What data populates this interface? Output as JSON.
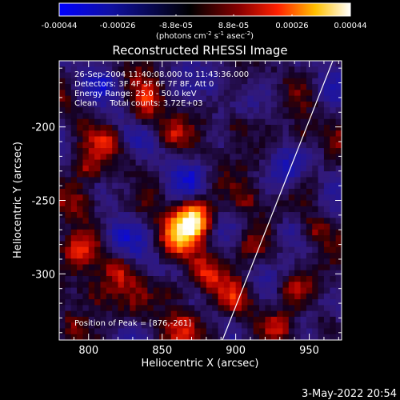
{
  "colorbar": {
    "tick_labels": [
      "-0.00044",
      "-0.00026",
      "-8.8e-05",
      "8.8e-05",
      "0.00026",
      "0.00044"
    ],
    "unit_main": "(photons cm",
    "unit_exp1": "-2",
    "unit_mid": " s",
    "unit_exp2": "-1",
    "unit_end": " asec",
    "unit_exp3": "-2",
    "unit_close": ")",
    "colors": [
      "#0000ff",
      "#000000",
      "#ff0000",
      "#ffff00",
      "#ffffff"
    ]
  },
  "plot": {
    "title": "Reconstructed RHESSI Image",
    "info_lines": [
      "26-Sep-2004 11:40:08.000 to 11:43:36.000",
      "Detectors: 3F 4F 5F 6F 7F 8F, Att 0",
      "Energy Range: 25.0 - 50.0 keV",
      "Clean     Total counts: 3.72E+03"
    ],
    "peak_label": "Position of Peak = [876,-261]",
    "timestamp": "3-May-2022 20:54"
  },
  "chart_data": {
    "type": "heatmap",
    "title": "Reconstructed RHESSI Image",
    "xlabel": "Heliocentric X (arcsec)",
    "ylabel": "Heliocentric Y (arcsec)",
    "xlim": [
      780,
      972
    ],
    "ylim": [
      -345,
      -155
    ],
    "x_ticks": [
      800,
      850,
      900,
      950
    ],
    "y_ticks": [
      -200,
      -250,
      -300
    ],
    "x_tick_labels": [
      "800",
      "850",
      "900",
      "950"
    ],
    "y_tick_labels": [
      "-200",
      "-250",
      "-300"
    ],
    "value_range": [
      -0.00044,
      0.00044
    ],
    "colorscale": "blue-black-red-yellow-white",
    "peak_position": [
      876,
      -261
    ],
    "limb_line": [
      [
        891,
        -345
      ],
      [
        966,
        -155
      ]
    ],
    "blobs": [
      {
        "x": 872,
        "y": -262,
        "sigma": 9,
        "amp": 1.0
      },
      {
        "x": 860,
        "y": -275,
        "sigma": 10,
        "amp": 0.55
      },
      {
        "x": 878,
        "y": -300,
        "sigma": 8,
        "amp": 0.5
      },
      {
        "x": 858,
        "y": -312,
        "sigma": 7,
        "amp": 0.55
      },
      {
        "x": 866,
        "y": -332,
        "sigma": 8,
        "amp": 0.45
      },
      {
        "x": 885,
        "y": -342,
        "sigma": 7,
        "amp": 0.4
      },
      {
        "x": 900,
        "y": -318,
        "sigma": 7,
        "amp": 0.45
      },
      {
        "x": 910,
        "y": -280,
        "sigma": 8,
        "amp": 0.4
      },
      {
        "x": 908,
        "y": -250,
        "sigma": 7,
        "amp": 0.35
      },
      {
        "x": 795,
        "y": -250,
        "sigma": 10,
        "amp": 0.5
      },
      {
        "x": 800,
        "y": -228,
        "sigma": 7,
        "amp": 0.45
      },
      {
        "x": 790,
        "y": -285,
        "sigma": 8,
        "amp": 0.5
      },
      {
        "x": 805,
        "y": -315,
        "sigma": 9,
        "amp": 0.5
      },
      {
        "x": 790,
        "y": -335,
        "sigma": 7,
        "amp": 0.45
      },
      {
        "x": 820,
        "y": -298,
        "sigma": 7,
        "amp": 0.4
      },
      {
        "x": 838,
        "y": -192,
        "sigma": 7,
        "amp": 0.45
      },
      {
        "x": 815,
        "y": -210,
        "sigma": 6,
        "amp": 0.35
      },
      {
        "x": 855,
        "y": -205,
        "sigma": 6,
        "amp": 0.35
      },
      {
        "x": 900,
        "y": -200,
        "sigma": 6,
        "amp": 0.35
      },
      {
        "x": 940,
        "y": -310,
        "sigma": 8,
        "amp": 0.45
      },
      {
        "x": 955,
        "y": -270,
        "sigma": 7,
        "amp": 0.4
      },
      {
        "x": 945,
        "y": -205,
        "sigma": 6,
        "amp": 0.35
      },
      {
        "x": 930,
        "y": -335,
        "sigma": 6,
        "amp": 0.35
      },
      {
        "x": 960,
        "y": -335,
        "sigma": 6,
        "amp": 0.3
      },
      {
        "x": 840,
        "y": -180,
        "sigma": 6,
        "amp": 0.3
      },
      {
        "x": 830,
        "y": -240,
        "sigma": 7,
        "amp": -0.35
      },
      {
        "x": 820,
        "y": -275,
        "sigma": 7,
        "amp": -0.35
      },
      {
        "x": 870,
        "y": -235,
        "sigma": 8,
        "amp": -0.3
      },
      {
        "x": 935,
        "y": -230,
        "sigma": 8,
        "amp": -0.35
      },
      {
        "x": 935,
        "y": -270,
        "sigma": 7,
        "amp": -0.3
      },
      {
        "x": 885,
        "y": -170,
        "sigma": 7,
        "amp": -0.3
      },
      {
        "x": 960,
        "y": -175,
        "sigma": 6,
        "amp": -0.3
      },
      {
        "x": 812,
        "y": -170,
        "sigma": 6,
        "amp": -0.25
      }
    ]
  }
}
